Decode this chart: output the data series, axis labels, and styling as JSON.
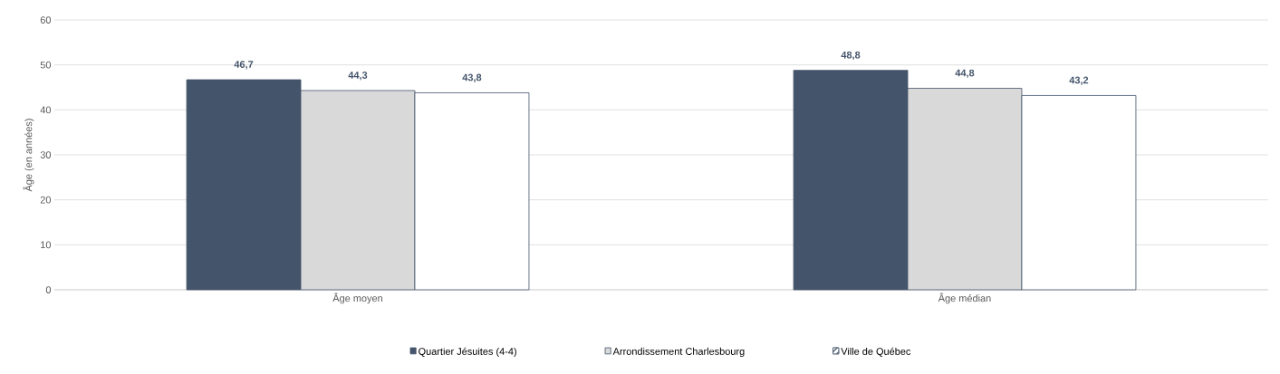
{
  "chart_data": {
    "type": "bar",
    "ylabel": "Âge (en années)",
    "categories": [
      "Âge moyen",
      "Âge médian"
    ],
    "series": [
      {
        "name": "Quartier Jésuites (4-4)",
        "color": "#44546a",
        "values": [
          46.7,
          48.8
        ],
        "value_labels": [
          "46,7",
          "48,8"
        ]
      },
      {
        "name": "Arrondissement Charlesbourg",
        "color": "#d9d9d9",
        "values": [
          44.3,
          44.8
        ],
        "value_labels": [
          "44,3",
          "44,8"
        ]
      },
      {
        "name": "Ville de Québec",
        "color": "#44546a",
        "values": [
          43.8,
          43.2
        ],
        "value_labels": [
          "43,8",
          "43,2"
        ]
      }
    ],
    "ylim": [
      0,
      60
    ],
    "yticks": [
      0,
      10,
      20,
      30,
      40,
      50,
      60
    ],
    "grid": "y",
    "legend": "bottom"
  }
}
